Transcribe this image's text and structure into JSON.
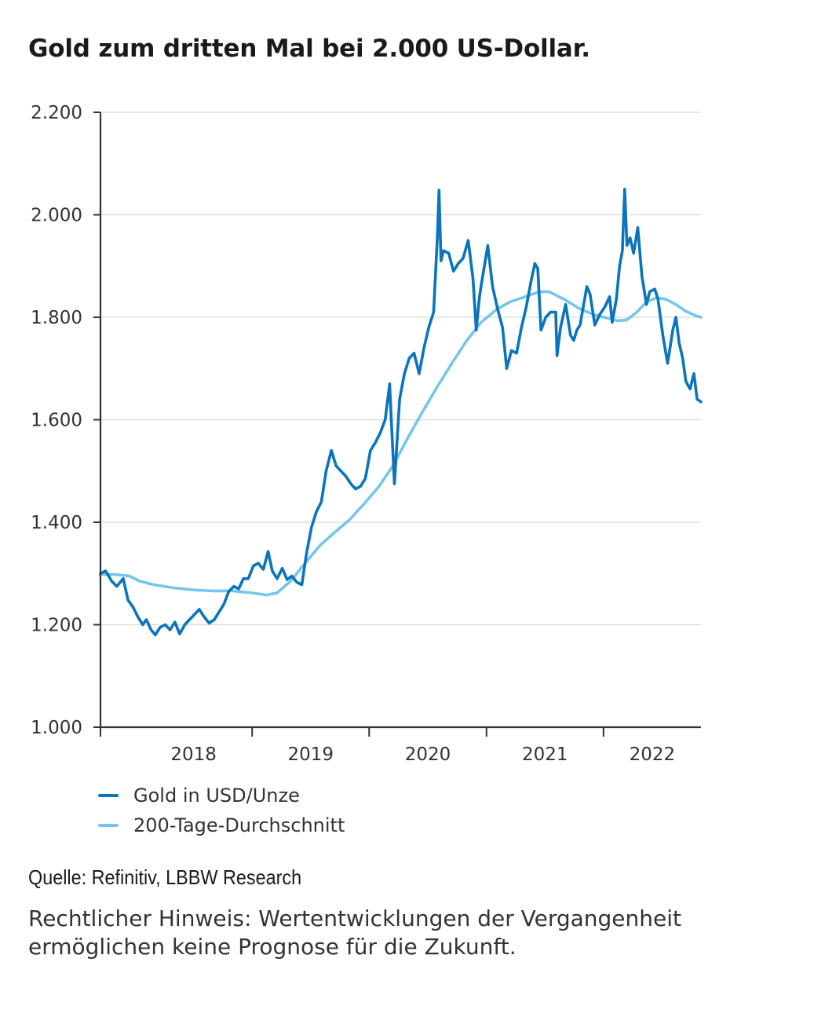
{
  "title": "Gold zum dritten Mal bei 2.000 US-Dollar.",
  "source": "Quelle: Refinitiv, LBBW Research",
  "disclaimer": "Rechtlicher Hinweis: Wertentwicklungen der Vergangenheit ermöglichen keine Prognose für die Zukunft.",
  "colors": {
    "gold": "#0a74bd",
    "ma200": "#76c5ea",
    "grid": "#d9d9d9",
    "axis": "#333333"
  },
  "chart_data": {
    "type": "line",
    "title": "Gold zum dritten Mal bei 2.000 US-Dollar.",
    "xlabel": "",
    "ylabel": "",
    "ylim": [
      1000,
      2200
    ],
    "yticks": [
      1000,
      1200,
      1400,
      1600,
      1800,
      2000,
      2200
    ],
    "ytick_labels": [
      "1.000",
      "1.200",
      "1.400",
      "1.600",
      "1.800",
      "2.000",
      "2.200"
    ],
    "xlim": [
      "2017-09-15",
      "2022-11-01"
    ],
    "xticks": [
      {
        "label": "2018",
        "start": "2018-01-01",
        "end": "2019-01-01"
      },
      {
        "label": "2019",
        "start": "2019-01-01",
        "end": "2020-01-01"
      },
      {
        "label": "2020",
        "start": "2020-01-01",
        "end": "2021-01-01"
      },
      {
        "label": "2021",
        "start": "2021-01-01",
        "end": "2022-01-01"
      },
      {
        "label": "2022",
        "start": "2022-01-01",
        "end": "2022-11-01"
      }
    ],
    "grid": true,
    "legend_position": "bottom",
    "series": [
      {
        "name": "Gold in USD/Unze",
        "points": [
          [
            "2017-09-15",
            1300
          ],
          [
            "2017-10-01",
            1305
          ],
          [
            "2017-10-20",
            1285
          ],
          [
            "2017-11-05",
            1275
          ],
          [
            "2017-11-25",
            1290
          ],
          [
            "2017-12-10",
            1248
          ],
          [
            "2017-12-25",
            1235
          ],
          [
            "2018-01-10",
            1215
          ],
          [
            "2018-01-25",
            1200
          ],
          [
            "2018-02-05",
            1210
          ],
          [
            "2018-02-20",
            1190
          ],
          [
            "2018-03-05",
            1180
          ],
          [
            "2018-03-20",
            1195
          ],
          [
            "2018-04-05",
            1200
          ],
          [
            "2018-04-20",
            1190
          ],
          [
            "2018-05-05",
            1205
          ],
          [
            "2018-05-20",
            1182
          ],
          [
            "2018-06-05",
            1200
          ],
          [
            "2018-06-20",
            1210
          ],
          [
            "2018-07-05",
            1220
          ],
          [
            "2018-07-20",
            1230
          ],
          [
            "2018-08-05",
            1215
          ],
          [
            "2018-08-20",
            1203
          ],
          [
            "2018-09-05",
            1210
          ],
          [
            "2018-09-20",
            1225
          ],
          [
            "2018-10-05",
            1240
          ],
          [
            "2018-10-20",
            1265
          ],
          [
            "2018-11-05",
            1275
          ],
          [
            "2018-11-20",
            1270
          ],
          [
            "2018-12-05",
            1290
          ],
          [
            "2018-12-20",
            1290
          ],
          [
            "2019-01-05",
            1315
          ],
          [
            "2019-01-20",
            1320
          ],
          [
            "2019-02-05",
            1308
          ],
          [
            "2019-02-20",
            1343
          ],
          [
            "2019-03-05",
            1305
          ],
          [
            "2019-03-20",
            1290
          ],
          [
            "2019-04-05",
            1310
          ],
          [
            "2019-04-20",
            1288
          ],
          [
            "2019-05-05",
            1295
          ],
          [
            "2019-05-20",
            1283
          ],
          [
            "2019-06-05",
            1278
          ],
          [
            "2019-06-20",
            1340
          ],
          [
            "2019-07-05",
            1390
          ],
          [
            "2019-07-20",
            1420
          ],
          [
            "2019-08-05",
            1440
          ],
          [
            "2019-08-20",
            1500
          ],
          [
            "2019-09-05",
            1540
          ],
          [
            "2019-09-20",
            1510
          ],
          [
            "2019-10-05",
            1500
          ],
          [
            "2019-10-20",
            1490
          ],
          [
            "2019-11-05",
            1475
          ],
          [
            "2019-11-20",
            1465
          ],
          [
            "2019-12-05",
            1470
          ],
          [
            "2019-12-20",
            1485
          ],
          [
            "2020-01-05",
            1540
          ],
          [
            "2020-01-20",
            1555
          ],
          [
            "2020-02-05",
            1575
          ],
          [
            "2020-02-20",
            1600
          ],
          [
            "2020-03-05",
            1670
          ],
          [
            "2020-03-10",
            1600
          ],
          [
            "2020-03-20",
            1475
          ],
          [
            "2020-04-05",
            1640
          ],
          [
            "2020-04-20",
            1690
          ],
          [
            "2020-05-05",
            1720
          ],
          [
            "2020-05-20",
            1730
          ],
          [
            "2020-06-05",
            1690
          ],
          [
            "2020-06-20",
            1740
          ],
          [
            "2020-07-05",
            1780
          ],
          [
            "2020-07-20",
            1810
          ],
          [
            "2020-08-01",
            1960
          ],
          [
            "2020-08-06",
            2048
          ],
          [
            "2020-08-12",
            1910
          ],
          [
            "2020-08-20",
            1930
          ],
          [
            "2020-09-05",
            1925
          ],
          [
            "2020-09-20",
            1890
          ],
          [
            "2020-10-05",
            1905
          ],
          [
            "2020-10-20",
            1915
          ],
          [
            "2020-11-05",
            1950
          ],
          [
            "2020-11-20",
            1875
          ],
          [
            "2020-11-30",
            1775
          ],
          [
            "2020-12-10",
            1840
          ],
          [
            "2020-12-20",
            1880
          ],
          [
            "2021-01-05",
            1940
          ],
          [
            "2021-01-20",
            1860
          ],
          [
            "2021-02-05",
            1815
          ],
          [
            "2021-02-20",
            1780
          ],
          [
            "2021-03-05",
            1700
          ],
          [
            "2021-03-20",
            1735
          ],
          [
            "2021-04-05",
            1730
          ],
          [
            "2021-04-20",
            1780
          ],
          [
            "2021-05-05",
            1820
          ],
          [
            "2021-05-20",
            1870
          ],
          [
            "2021-06-01",
            1905
          ],
          [
            "2021-06-10",
            1895
          ],
          [
            "2021-06-20",
            1775
          ],
          [
            "2021-07-05",
            1800
          ],
          [
            "2021-07-20",
            1810
          ],
          [
            "2021-08-05",
            1810
          ],
          [
            "2021-08-09",
            1725
          ],
          [
            "2021-08-20",
            1780
          ],
          [
            "2021-09-05",
            1825
          ],
          [
            "2021-09-20",
            1765
          ],
          [
            "2021-09-30",
            1755
          ],
          [
            "2021-10-10",
            1775
          ],
          [
            "2021-10-20",
            1785
          ],
          [
            "2021-11-10",
            1860
          ],
          [
            "2021-11-20",
            1845
          ],
          [
            "2021-12-05",
            1785
          ],
          [
            "2021-12-20",
            1805
          ],
          [
            "2022-01-05",
            1820
          ],
          [
            "2022-01-20",
            1840
          ],
          [
            "2022-01-28",
            1790
          ],
          [
            "2022-02-10",
            1835
          ],
          [
            "2022-02-20",
            1900
          ],
          [
            "2022-03-01",
            1930
          ],
          [
            "2022-03-08",
            2050
          ],
          [
            "2022-03-15",
            1940
          ],
          [
            "2022-03-25",
            1955
          ],
          [
            "2022-04-05",
            1925
          ],
          [
            "2022-04-18",
            1975
          ],
          [
            "2022-05-01",
            1880
          ],
          [
            "2022-05-15",
            1825
          ],
          [
            "2022-05-25",
            1850
          ],
          [
            "2022-06-10",
            1855
          ],
          [
            "2022-06-20",
            1835
          ],
          [
            "2022-07-05",
            1765
          ],
          [
            "2022-07-20",
            1710
          ],
          [
            "2022-08-05",
            1775
          ],
          [
            "2022-08-15",
            1800
          ],
          [
            "2022-08-25",
            1750
          ],
          [
            "2022-09-05",
            1720
          ],
          [
            "2022-09-15",
            1675
          ],
          [
            "2022-09-28",
            1660
          ],
          [
            "2022-10-10",
            1690
          ],
          [
            "2022-10-20",
            1640
          ],
          [
            "2022-11-01",
            1635
          ]
        ]
      },
      {
        "name": "200-Tage-Durchschnitt",
        "points": [
          [
            "2017-09-15",
            1298
          ],
          [
            "2017-11-01",
            1298
          ],
          [
            "2017-12-15",
            1295
          ],
          [
            "2018-01-15",
            1285
          ],
          [
            "2018-03-01",
            1278
          ],
          [
            "2018-05-01",
            1272
          ],
          [
            "2018-07-01",
            1268
          ],
          [
            "2018-09-01",
            1266
          ],
          [
            "2018-11-01",
            1266
          ],
          [
            "2019-01-01",
            1262
          ],
          [
            "2019-02-15",
            1258
          ],
          [
            "2019-03-20",
            1262
          ],
          [
            "2019-05-01",
            1285
          ],
          [
            "2019-06-15",
            1320
          ],
          [
            "2019-08-01",
            1355
          ],
          [
            "2019-09-15",
            1380
          ],
          [
            "2019-11-01",
            1405
          ],
          [
            "2019-12-15",
            1435
          ],
          [
            "2020-02-01",
            1470
          ],
          [
            "2020-03-15",
            1510
          ],
          [
            "2020-05-01",
            1565
          ],
          [
            "2020-06-15",
            1615
          ],
          [
            "2020-08-01",
            1665
          ],
          [
            "2020-09-15",
            1710
          ],
          [
            "2020-11-01",
            1755
          ],
          [
            "2020-12-15",
            1790
          ],
          [
            "2021-02-01",
            1815
          ],
          [
            "2021-03-15",
            1830
          ],
          [
            "2021-05-01",
            1840
          ],
          [
            "2021-06-15",
            1850
          ],
          [
            "2021-07-15",
            1850
          ],
          [
            "2021-09-01",
            1835
          ],
          [
            "2021-10-15",
            1818
          ],
          [
            "2021-12-01",
            1805
          ],
          [
            "2022-01-15",
            1798
          ],
          [
            "2022-02-15",
            1793
          ],
          [
            "2022-03-15",
            1795
          ],
          [
            "2022-04-15",
            1810
          ],
          [
            "2022-05-15",
            1830
          ],
          [
            "2022-06-15",
            1838
          ],
          [
            "2022-07-15",
            1835
          ],
          [
            "2022-08-15",
            1825
          ],
          [
            "2022-09-15",
            1812
          ],
          [
            "2022-10-15",
            1803
          ],
          [
            "2022-11-01",
            1800
          ]
        ]
      }
    ]
  }
}
